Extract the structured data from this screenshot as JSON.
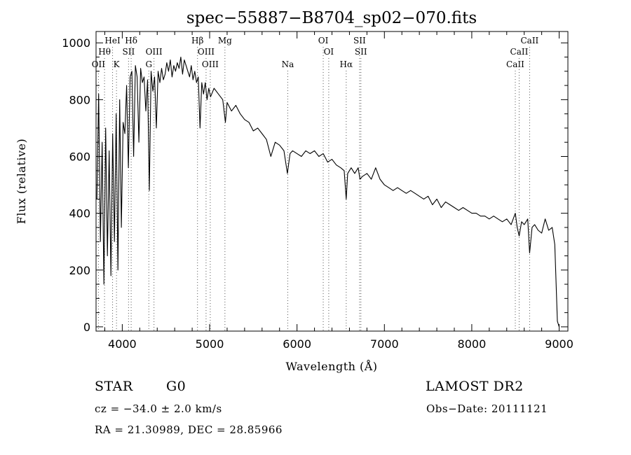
{
  "chart_data": {
    "type": "line",
    "title": "spec−55887−B8704_sp02−070.fits",
    "xlabel": "Wavelength (Å)",
    "ylabel": "Flux (relative)",
    "xlim": [
      3700,
      9100
    ],
    "ylim": [
      -15,
      1040
    ],
    "xticks": [
      4000,
      5000,
      6000,
      7000,
      8000,
      9000
    ],
    "xtick_labels": [
      "4000",
      "5000",
      "6000",
      "7000",
      "8000",
      "9000"
    ],
    "yticks": [
      0,
      200,
      400,
      600,
      800,
      1000
    ],
    "ytick_labels": [
      "0",
      "200",
      "400",
      "600",
      "800",
      "1000"
    ],
    "grid": false,
    "series": [
      {
        "x": [
          3710,
          3730,
          3750,
          3770,
          3790,
          3810,
          3830,
          3850,
          3870,
          3890,
          3910,
          3930,
          3950,
          3970,
          3990,
          4010,
          4030,
          4050,
          4070,
          4090,
          4110,
          4130,
          4150,
          4170,
          4190,
          4210,
          4230,
          4250,
          4270,
          4290,
          4310,
          4330,
          4350,
          4370,
          4390,
          4410,
          4430,
          4450,
          4470,
          4490,
          4510,
          4530,
          4550,
          4570,
          4590,
          4610,
          4630,
          4650,
          4670,
          4690,
          4710,
          4730,
          4750,
          4770,
          4790,
          4810,
          4830,
          4850,
          4870,
          4890,
          4910,
          4930,
          4950,
          4970,
          4990,
          5010,
          5050,
          5100,
          5150,
          5180,
          5200,
          5250,
          5300,
          5350,
          5400,
          5450,
          5500,
          5550,
          5600,
          5650,
          5700,
          5750,
          5800,
          5850,
          5890,
          5920,
          5950,
          6000,
          6050,
          6100,
          6150,
          6200,
          6250,
          6300,
          6350,
          6400,
          6450,
          6500,
          6540,
          6563,
          6580,
          6620,
          6660,
          6700,
          6720,
          6750,
          6800,
          6850,
          6900,
          6950,
          7000,
          7050,
          7100,
          7150,
          7200,
          7250,
          7300,
          7350,
          7400,
          7450,
          7500,
          7550,
          7600,
          7650,
          7700,
          7750,
          7800,
          7850,
          7900,
          7950,
          8000,
          8050,
          8100,
          8150,
          8200,
          8250,
          8300,
          8350,
          8400,
          8450,
          8498,
          8520,
          8542,
          8570,
          8600,
          8640,
          8662,
          8690,
          8720,
          8760,
          8800,
          8840,
          8880,
          8920,
          8950,
          8980,
          9000
        ],
        "y": [
          450,
          820,
          300,
          650,
          150,
          700,
          250,
          620,
          180,
          680,
          300,
          750,
          200,
          800,
          350,
          720,
          680,
          850,
          560,
          880,
          900,
          600,
          920,
          880,
          650,
          910,
          860,
          880,
          760,
          870,
          480,
          900,
          830,
          880,
          700,
          900,
          860,
          910,
          870,
          890,
          930,
          900,
          940,
          880,
          920,
          900,
          930,
          910,
          950,
          890,
          940,
          920,
          900,
          880,
          920,
          870,
          900,
          860,
          880,
          700,
          860,
          820,
          860,
          800,
          840,
          810,
          840,
          820,
          800,
          720,
          790,
          760,
          780,
          750,
          730,
          720,
          690,
          700,
          680,
          660,
          600,
          650,
          640,
          620,
          540,
          610,
          620,
          610,
          600,
          620,
          610,
          620,
          600,
          610,
          580,
          590,
          570,
          560,
          550,
          450,
          540,
          560,
          540,
          560,
          520,
          530,
          540,
          520,
          560,
          520,
          500,
          490,
          480,
          490,
          480,
          470,
          480,
          470,
          460,
          450,
          460,
          430,
          450,
          420,
          440,
          430,
          420,
          410,
          420,
          410,
          400,
          400,
          390,
          390,
          380,
          390,
          380,
          370,
          380,
          360,
          400,
          350,
          320,
          370,
          360,
          380,
          260,
          350,
          360,
          340,
          330,
          380,
          340,
          350,
          290,
          20,
          0
        ]
      }
    ],
    "lines": [
      {
        "name": "OII",
        "x": 3727,
        "row": 3
      },
      {
        "name": "Hθ",
        "x": 3797,
        "row": 2
      },
      {
        "name": "HeI",
        "x": 3889,
        "row": 1
      },
      {
        "name": "K",
        "x": 3934,
        "row": 3
      },
      {
        "name": "Hδ",
        "x": 4102,
        "row": 1
      },
      {
        "name": "SII",
        "x": 4072,
        "row": 2
      },
      {
        "name": "OIII",
        "x": 4363,
        "row": 2
      },
      {
        "name": "G",
        "x": 4304,
        "row": 3
      },
      {
        "name": "Hβ",
        "x": 4861,
        "row": 1
      },
      {
        "name": "OIII",
        "x": 4959,
        "row": 2
      },
      {
        "name": "OIII",
        "x": 5007,
        "row": 3
      },
      {
        "name": "Mg",
        "x": 5175,
        "row": 1
      },
      {
        "name": "Na",
        "x": 5894,
        "row": 3
      },
      {
        "name": "OI",
        "x": 6300,
        "row": 1
      },
      {
        "name": "OI",
        "x": 6363,
        "row": 2
      },
      {
        "name": "Hα",
        "x": 6563,
        "row": 3
      },
      {
        "name": "SII",
        "x": 6716,
        "row": 1
      },
      {
        "name": "SII",
        "x": 6731,
        "row": 2
      },
      {
        "name": "CaII",
        "x": 8498,
        "row": 3
      },
      {
        "name": "CaII",
        "x": 8542,
        "row": 2
      },
      {
        "name": "CaII",
        "x": 8662,
        "row": 1
      }
    ]
  },
  "info": {
    "object_class": "STAR",
    "subclass": "G0",
    "survey": "LAMOST DR2",
    "redshift": "cz = −34.0 ± 2.0 km/s",
    "obs_date": "Obs−Date: 20111121",
    "coords": "RA =  21.30989, DEC =  28.85966"
  }
}
